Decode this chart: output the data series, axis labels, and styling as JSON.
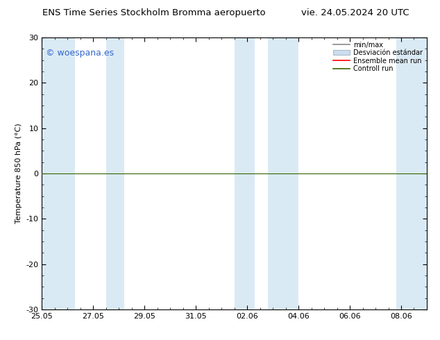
{
  "title_left": "ENS Time Series Stockholm Bromma aeropuerto",
  "title_right": "vie. 24.05.2024 20 UTC",
  "ylabel": "Temperature 850 hPa (°C)",
  "ylim": [
    -30,
    30
  ],
  "yticks": [
    -30,
    -20,
    -10,
    0,
    10,
    20,
    30
  ],
  "xtick_labels": [
    "25.05",
    "27.05",
    "29.05",
    "31.05",
    "02.06",
    "04.06",
    "06.06",
    "08.06"
  ],
  "figure_bg": "#ffffff",
  "plot_bg": "#ffffff",
  "band_color": "#daeaf5",
  "legend_labels": [
    "min/max",
    "Desviación estándar",
    "Ensemble mean run",
    "Controll run"
  ],
  "watermark": "© woespana.es",
  "watermark_color": "#3366cc",
  "zero_line_color": "#336600",
  "ensemble_mean_color": "#ff0000",
  "control_run_color": "#336600",
  "minmax_line_color": "#888888",
  "std_patch_color": "#ccddee",
  "std_patch_edge": "#aabbcc",
  "title_fontsize": 9.5,
  "tick_fontsize": 8,
  "label_fontsize": 8
}
